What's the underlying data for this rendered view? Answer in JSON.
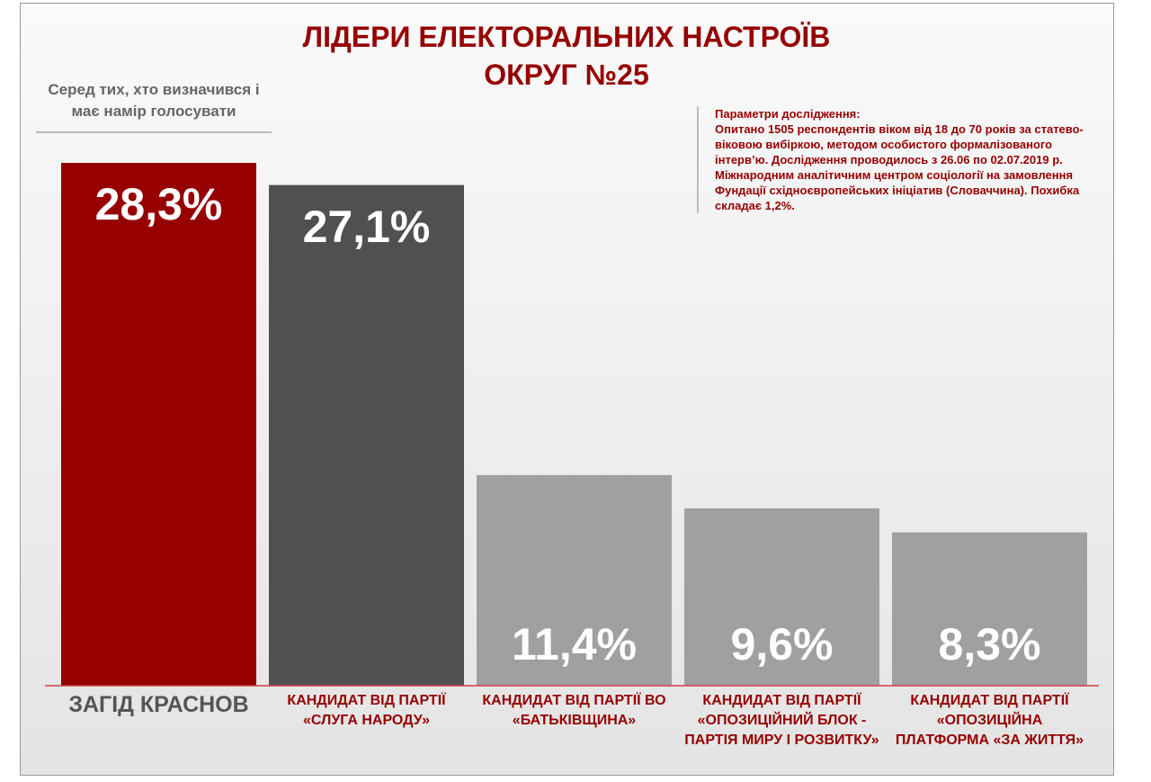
{
  "chart_data": {
    "type": "bar",
    "title": [
      "ЛІДЕРИ ЕЛЕКТОРАЛЬНИХ НАСТРОЇВ",
      "ОКРУГ №25"
    ],
    "subtitle": "Серед тих, хто визначився і має намір голосувати",
    "notes_title": "Параметри дослідження:",
    "notes": "Опитано 1505 респондентів віком від 18 до 70 років за статево-віковою вибіркою, методом особистого формалізованого інтерв’ю. Дослідження проводилось з 26.06 по 02.07.2019 р. Міжнародним аналітичним центром соціології на замовлення Фундації східноєвропейських ініціатив (Словаччина). Похибка складає 1,2%.",
    "categories": [
      "ЗАГІД КРАСНОВ",
      "КАНДИДАТ ВІД ПАРТІЇ «СЛУГА НАРОДУ»",
      "КАНДИДАТ ВІД ПАРТІЇ ВО «БАТЬКІВЩИНА»",
      "КАНДИДАТ ВІД ПАРТІЇ «ОПОЗИЦІЙНИЙ БЛОК - ПАРТІЯ МИРУ І РОЗВИТКУ»",
      "КАНДИДАТ ВІД ПАРТІЇ «ОПОЗИЦІЙНА ПЛАТФОРМА «ЗА ЖИТТЯ»"
    ],
    "values": [
      28.3,
      27.1,
      11.4,
      9.6,
      8.3
    ],
    "value_labels": [
      "28,3%",
      "27,1%",
      "11,4%",
      "9,6%",
      "8,3%"
    ],
    "colors": [
      "#960000",
      "#505050",
      "#a0a0a0",
      "#a0a0a0",
      "#a0a0a0"
    ]
  }
}
